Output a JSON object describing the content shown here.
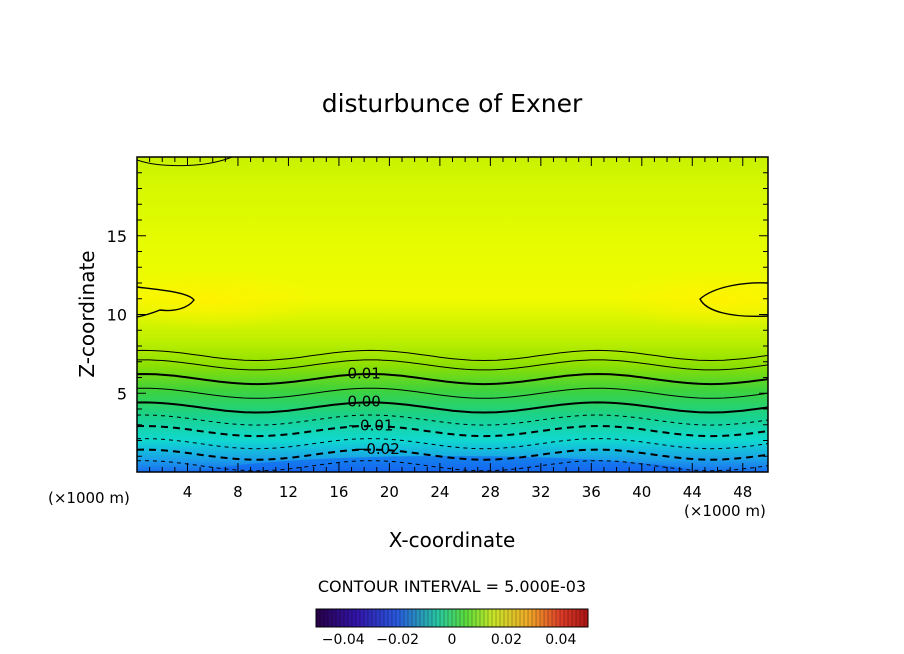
{
  "chart_data": {
    "type": "heatmap",
    "title": "disturbunce of Exner",
    "xlabel": "X-coordinate",
    "ylabel": "Z-coordinate",
    "x_unit_left": "(×1000 m)",
    "x_unit_right": "(×1000 m)",
    "xlim": [
      0,
      50
    ],
    "ylim": [
      0,
      20
    ],
    "x_ticks": [
      4,
      8,
      12,
      16,
      20,
      24,
      28,
      32,
      36,
      40,
      44,
      48
    ],
    "y_ticks": [
      5,
      10,
      15
    ],
    "contour_interval_text": "CONTOUR INTERVAL = 5.000E-03",
    "contour_labels": [
      {
        "text": "0.01",
        "x": 18.0,
        "z": 6.2
      },
      {
        "text": "0.00",
        "x": 18.0,
        "z": 4.4
      },
      {
        "text": "−0.01",
        "x": 18.5,
        "z": 2.9
      },
      {
        "text": "−0.02",
        "x": 19.0,
        "z": 1.4
      }
    ],
    "contours": [
      {
        "level": 0.02,
        "base_z": 7.4,
        "style": "thin"
      },
      {
        "level": 0.015,
        "base_z": 6.8,
        "style": "thin"
      },
      {
        "level": 0.01,
        "base_z": 5.9,
        "style": "thick"
      },
      {
        "level": 0.005,
        "base_z": 5.0,
        "style": "thin"
      },
      {
        "level": 0.0,
        "base_z": 4.1,
        "style": "thick"
      },
      {
        "level": -0.005,
        "base_z": 3.3,
        "style": "dash-thin"
      },
      {
        "level": -0.01,
        "base_z": 2.6,
        "style": "dash-thick"
      },
      {
        "level": -0.015,
        "base_z": 1.8,
        "style": "dash-thin"
      },
      {
        "level": -0.02,
        "base_z": 1.1,
        "style": "dash-thick"
      },
      {
        "level": -0.025,
        "base_z": 0.4,
        "style": "dash-thin"
      }
    ],
    "colorbar": {
      "min": -0.05,
      "max": 0.05,
      "tick_labels": [
        "−0.04",
        "−0.02",
        "0",
        "0.02",
        "0.04"
      ],
      "tick_values": [
        -0.04,
        -0.02,
        0,
        0.02,
        0.04
      ]
    }
  }
}
